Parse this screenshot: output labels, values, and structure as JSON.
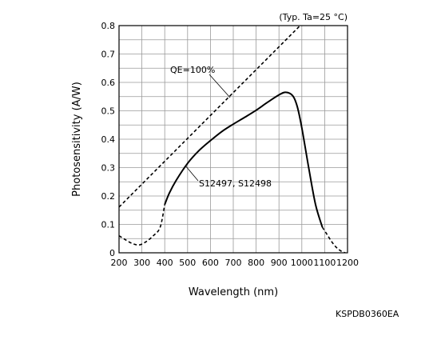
{
  "doc_code": "KSPDB0360EA",
  "chart_data": {
    "type": "line",
    "condition": "(Typ. Ta=25 °C)",
    "xlabel": "Wavelength (nm)",
    "ylabel": "Photosensitivity (A/W)",
    "xlim": [
      200,
      1200
    ],
    "ylim": [
      0,
      0.8
    ],
    "xticks": [
      200,
      300,
      400,
      500,
      600,
      700,
      800,
      900,
      1000,
      1100,
      1200
    ],
    "yticks": [
      "0",
      "0.1",
      "0.2",
      "0.3",
      "0.4",
      "0.5",
      "0.6",
      "0.7",
      "0.8"
    ],
    "grid": true,
    "series": [
      {
        "name": "S12497, S12498",
        "style": "solid",
        "x": [
          400,
          420,
          450,
          500,
          550,
          600,
          650,
          700,
          750,
          800,
          850,
          900,
          930,
          960,
          980,
          1000,
          1030,
          1060,
          1090
        ],
        "y": [
          0.17,
          0.21,
          0.255,
          0.315,
          0.36,
          0.395,
          0.427,
          0.453,
          0.477,
          0.502,
          0.53,
          0.556,
          0.565,
          0.553,
          0.515,
          0.44,
          0.3,
          0.17,
          0.09
        ],
        "ext_before": {
          "x": [
            200,
            230,
            260,
            290,
            320,
            350,
            380,
            400
          ],
          "y": [
            0.06,
            0.045,
            0.032,
            0.028,
            0.04,
            0.06,
            0.09,
            0.17
          ]
        },
        "ext_after": {
          "x": [
            1090,
            1110,
            1130,
            1150,
            1170,
            1190
          ],
          "y": [
            0.09,
            0.065,
            0.04,
            0.02,
            0.007,
            0.0
          ]
        }
      },
      {
        "name": "QE=100%",
        "style": "dashed",
        "x": [
          200,
          1000
        ],
        "y": [
          0.161,
          0.806
        ]
      }
    ]
  }
}
